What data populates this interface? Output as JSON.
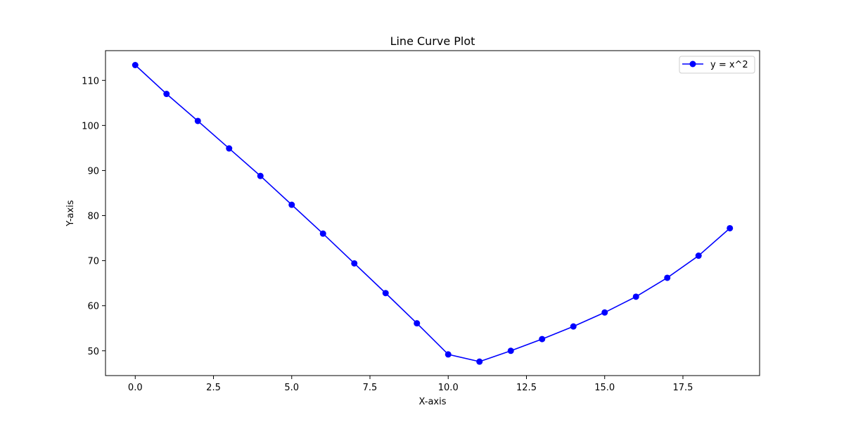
{
  "chart_data": {
    "type": "line",
    "title": "Line Curve Plot",
    "xlabel": "X-axis",
    "ylabel": "Y-axis",
    "xlim": [
      -0.95,
      19.95
    ],
    "ylim": [
      44.5,
      116.6
    ],
    "x_ticks": [
      0.0,
      2.5,
      5.0,
      7.5,
      10.0,
      12.5,
      15.0,
      17.5
    ],
    "x_tick_labels": [
      "0.0",
      "2.5",
      "5.0",
      "7.5",
      "10.0",
      "12.5",
      "15.0",
      "17.5"
    ],
    "y_ticks": [
      50,
      60,
      70,
      80,
      90,
      100,
      110
    ],
    "y_tick_labels": [
      "50",
      "60",
      "70",
      "80",
      "90",
      "100",
      "110"
    ],
    "grid": false,
    "legend": {
      "position": "top-right",
      "entries": [
        "y = x^2"
      ]
    },
    "series": [
      {
        "name": "y = x^2",
        "color": "#0000ff",
        "marker": "circle",
        "x": [
          0,
          1,
          2,
          3,
          4,
          5,
          6,
          7,
          8,
          9,
          10,
          11,
          12,
          13,
          14,
          15,
          16,
          17,
          18,
          19
        ],
        "y": [
          113.4,
          107.0,
          101.0,
          94.9,
          88.8,
          82.4,
          76.0,
          69.4,
          62.8,
          56.1,
          49.2,
          47.6,
          50.0,
          52.6,
          55.4,
          58.5,
          62.0,
          66.2,
          71.1,
          77.2
        ]
      }
    ]
  }
}
